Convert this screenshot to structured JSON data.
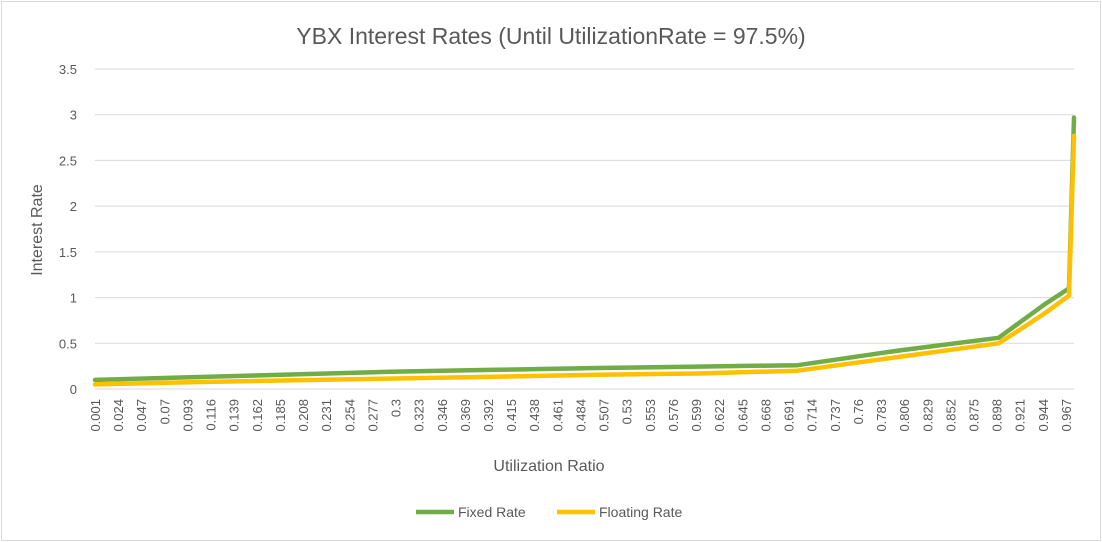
{
  "chart_data": {
    "type": "line",
    "title": "YBX Interest Rates (Until UtilizationRate = 97.5%)",
    "xlabel": "Utilization Ratio",
    "ylabel": "Interest Rate",
    "ylim": [
      0,
      3.5
    ],
    "yticks": [
      "0",
      "0.5",
      "1",
      "1.5",
      "2",
      "2.5",
      "3",
      "3.5"
    ],
    "x_tick_labels": [
      "0.001",
      "0.024",
      "0.047",
      "0.07",
      "0.093",
      "0.116",
      "0.139",
      "0.162",
      "0.185",
      "0.208",
      "0.231",
      "0.254",
      "0.277",
      "0.3",
      "0.323",
      "0.346",
      "0.369",
      "0.392",
      "0.415",
      "0.438",
      "0.461",
      "0.484",
      "0.507",
      "0.53",
      "0.553",
      "0.576",
      "0.599",
      "0.622",
      "0.645",
      "0.668",
      "0.691",
      "0.714",
      "0.737",
      "0.76",
      "0.783",
      "0.806",
      "0.829",
      "0.852",
      "0.875",
      "0.898",
      "0.921",
      "0.944",
      "0.967"
    ],
    "x_range": [
      0.001,
      0.975
    ],
    "grid": true,
    "legend": "bottom",
    "series": [
      {
        "name": "Fixed Rate",
        "color": "#70ad47",
        "points": [
          [
            0.001,
            0.1
          ],
          [
            0.1,
            0.13
          ],
          [
            0.2,
            0.16
          ],
          [
            0.3,
            0.19
          ],
          [
            0.4,
            0.21
          ],
          [
            0.5,
            0.23
          ],
          [
            0.6,
            0.245
          ],
          [
            0.7,
            0.26
          ],
          [
            0.8,
            0.42
          ],
          [
            0.9,
            0.56
          ],
          [
            0.92,
            0.72
          ],
          [
            0.945,
            0.92
          ],
          [
            0.97,
            1.1
          ],
          [
            0.975,
            2.97
          ]
        ]
      },
      {
        "name": "Floating Rate",
        "color": "#ffc000",
        "points": [
          [
            0.001,
            0.05
          ],
          [
            0.1,
            0.075
          ],
          [
            0.2,
            0.095
          ],
          [
            0.3,
            0.115
          ],
          [
            0.4,
            0.135
          ],
          [
            0.5,
            0.155
          ],
          [
            0.6,
            0.17
          ],
          [
            0.7,
            0.2
          ],
          [
            0.8,
            0.35
          ],
          [
            0.9,
            0.5
          ],
          [
            0.92,
            0.64
          ],
          [
            0.945,
            0.82
          ],
          [
            0.97,
            1.02
          ],
          [
            0.975,
            2.77
          ]
        ]
      }
    ]
  }
}
